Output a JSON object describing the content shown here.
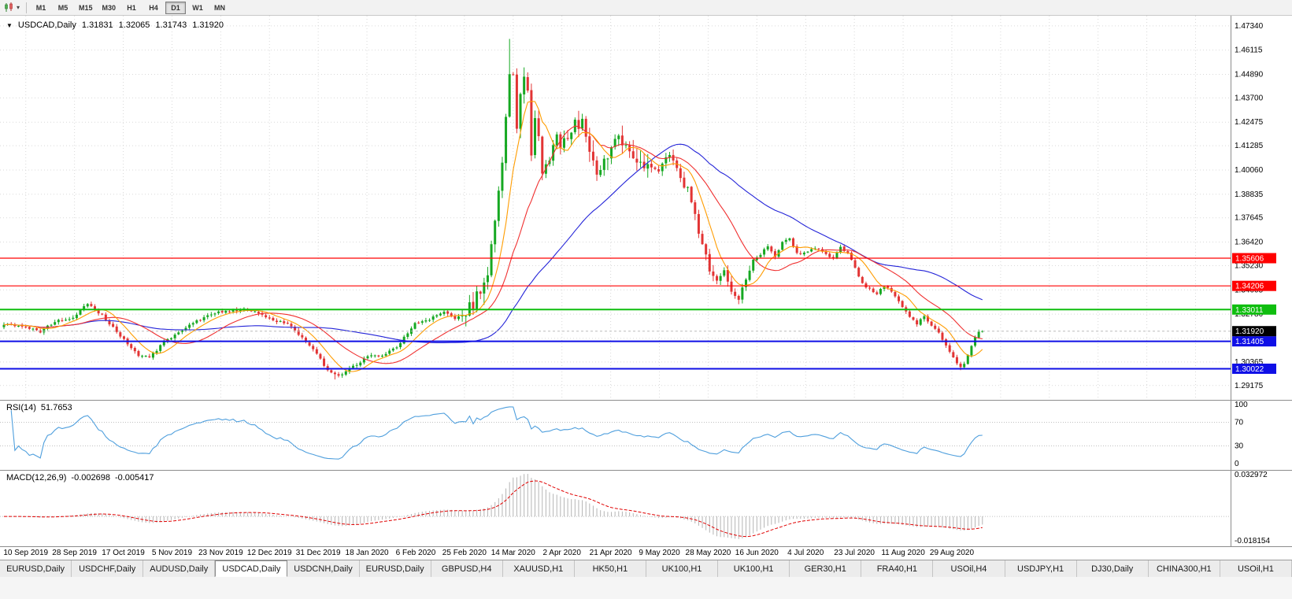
{
  "icons": {
    "collapse_arrow": "▼",
    "dropdown_caret": "▾"
  },
  "toolbar": {
    "timeframes": [
      {
        "label": "M1",
        "active": false
      },
      {
        "label": "M5",
        "active": false
      },
      {
        "label": "M15",
        "active": false
      },
      {
        "label": "M30",
        "active": false
      },
      {
        "label": "H1",
        "active": false
      },
      {
        "label": "H4",
        "active": false
      },
      {
        "label": "D1",
        "active": true
      },
      {
        "label": "W1",
        "active": false
      },
      {
        "label": "MN",
        "active": false
      }
    ]
  },
  "chart": {
    "title": {
      "symbol": "USDCAD,Daily",
      "open": "1.31831",
      "high": "1.32065",
      "low": "1.31743",
      "close": "1.31920"
    },
    "price_axis_labels": [
      "1.47340",
      "1.46115",
      "1.44890",
      "1.43700",
      "1.42475",
      "1.41285",
      "1.40060",
      "1.38835",
      "1.37645",
      "1.36420",
      "1.35230",
      "1.34005",
      "1.32780",
      "1.31555",
      "1.30365",
      "1.29175"
    ],
    "levels": [
      {
        "value": "1.35606",
        "price": 1.35606,
        "color": "#ff0000",
        "width": 1.2
      },
      {
        "value": "1.34206",
        "price": 1.34206,
        "color": "#ff0000",
        "width": 1.2
      },
      {
        "value": "1.33011",
        "price": 1.33011,
        "color": "#0fbe0f",
        "width": 2
      },
      {
        "value": "1.31405",
        "price": 1.31405,
        "color": "#0f0fe6",
        "width": 2
      },
      {
        "value": "1.30022",
        "price": 1.30022,
        "color": "#0f0fe6",
        "width": 2
      }
    ],
    "current_price": {
      "value": "1.31920",
      "price": 1.3192,
      "badge_color": "#000000"
    },
    "dates": [
      "10 Sep 2019",
      "28 Sep 2019",
      "17 Oct 2019",
      "5 Nov 2019",
      "23 Nov 2019",
      "12 Dec 2019",
      "31 Dec 2019",
      "18 Jan 2020",
      "6 Feb 2020",
      "25 Feb 2020",
      "14 Mar 2020",
      "2 Apr 2020",
      "21 Apr 2020",
      "9 May 2020",
      "28 May 2020",
      "16 Jun 2020",
      "4 Jul 2020",
      "23 Jul 2020",
      "11 Aug 2020",
      "29 Aug 2020"
    ]
  },
  "rsi": {
    "label": "RSI(14)",
    "value": "51.7653",
    "period": 14,
    "axis_labels": [
      {
        "value": 100,
        "label": "100"
      },
      {
        "value": 70,
        "label": "70"
      },
      {
        "value": 30,
        "label": "30"
      },
      {
        "value": 0,
        "label": "0"
      }
    ],
    "level_lines": [
      70,
      30
    ],
    "color": "#4f9fdd"
  },
  "macd": {
    "label": "MACD(12,26,9)",
    "main_value": "-0.002698",
    "signal_value": "-0.005417",
    "fast": 12,
    "slow": 26,
    "signal": 9,
    "axis_top": "0.032972",
    "axis_bottom": "-0.018154",
    "histogram_color": "#b4b4b4",
    "signal_color": "#e00000"
  },
  "tabs": [
    {
      "label": "EURUSD,Daily",
      "active": false
    },
    {
      "label": "USDCHF,Daily",
      "active": false
    },
    {
      "label": "AUDUSD,Daily",
      "active": false
    },
    {
      "label": "USDCAD,Daily",
      "active": true
    },
    {
      "label": "USDCNH,Daily",
      "active": false
    },
    {
      "label": "EURUSD,Daily",
      "active": false
    },
    {
      "label": "GBPUSD,H4",
      "active": false
    },
    {
      "label": "XAUUSD,H1",
      "active": false
    },
    {
      "label": "HK50,H1",
      "active": false
    },
    {
      "label": "UK100,H1",
      "active": false
    },
    {
      "label": "UK100,H1",
      "active": false
    },
    {
      "label": "GER30,H1",
      "active": false
    },
    {
      "label": "FRA40,H1",
      "active": false
    },
    {
      "label": "USOil,H4",
      "active": false
    },
    {
      "label": "USDJPY,H1",
      "active": false
    },
    {
      "label": "DJ30,Daily",
      "active": false
    },
    {
      "label": "CHINA300,H1",
      "active": false
    },
    {
      "label": "USOil,H1",
      "active": false
    }
  ],
  "chart_data": {
    "type": "candlestick",
    "symbol": "USDCAD",
    "timeframe": "Daily",
    "n_candles": 270,
    "last_close": 1.3192,
    "price_range": [
      1.2845,
      1.4785
    ],
    "close_anchors": [
      [
        0,
        1.323
      ],
      [
        6,
        1.3215
      ],
      [
        10,
        1.319
      ],
      [
        14,
        1.324
      ],
      [
        19,
        1.3262
      ],
      [
        23,
        1.3335
      ],
      [
        27,
        1.327
      ],
      [
        33,
        1.315
      ],
      [
        37,
        1.3072
      ],
      [
        40,
        1.3058
      ],
      [
        44,
        1.3135
      ],
      [
        46,
        1.3162
      ],
      [
        52,
        1.3232
      ],
      [
        56,
        1.3272
      ],
      [
        60,
        1.3292
      ],
      [
        66,
        1.3302
      ],
      [
        70,
        1.3282
      ],
      [
        73,
        1.3252
      ],
      [
        78,
        1.3232
      ],
      [
        82,
        1.316
      ],
      [
        86,
        1.3082
      ],
      [
        89,
        1.2992
      ],
      [
        92,
        1.2962
      ],
      [
        96,
        1.3012
      ],
      [
        100,
        1.3062
      ],
      [
        104,
        1.3072
      ],
      [
        108,
        1.3112
      ],
      [
        113,
        1.3232
      ],
      [
        117,
        1.3252
      ],
      [
        121,
        1.3292
      ],
      [
        124,
        1.3258
      ],
      [
        127,
        1.3282
      ],
      [
        129,
        1.3332
      ],
      [
        131,
        1.3402
      ],
      [
        133,
        1.3492
      ],
      [
        135,
        1.3752
      ],
      [
        137,
        1.4052
      ],
      [
        139,
        1.4502
      ],
      [
        140,
        1.4462
      ],
      [
        141,
        1.4202
      ],
      [
        142,
        1.4362
      ],
      [
        143,
        1.4482
      ],
      [
        144,
        1.4382
      ],
      [
        145,
        1.4102
      ],
      [
        146,
        1.4262
      ],
      [
        147,
        1.4182
      ],
      [
        148,
        1.3982
      ],
      [
        150,
        1.4082
      ],
      [
        152,
        1.4182
      ],
      [
        153,
        1.4142
      ],
      [
        155,
        1.4192
      ],
      [
        157,
        1.4232
      ],
      [
        159,
        1.4252
      ],
      [
        161,
        1.4082
      ],
      [
        163,
        1.3982
      ],
      [
        165,
        1.4062
      ],
      [
        167,
        1.4092
      ],
      [
        169,
        1.4182
      ],
      [
        172,
        1.4122
      ],
      [
        175,
        1.4032
      ],
      [
        178,
        1.3992
      ],
      [
        180,
        1.4012
      ],
      [
        183,
        1.4082
      ],
      [
        186,
        1.3962
      ],
      [
        188,
        1.3902
      ],
      [
        190,
        1.3782
      ],
      [
        192,
        1.3622
      ],
      [
        194,
        1.3502
      ],
      [
        196,
        1.3432
      ],
      [
        198,
        1.3492
      ],
      [
        200,
        1.3392
      ],
      [
        202,
        1.3362
      ],
      [
        204,
        1.3452
      ],
      [
        206,
        1.3552
      ],
      [
        208,
        1.3582
      ],
      [
        210,
        1.3622
      ],
      [
        212,
        1.3562
      ],
      [
        214,
        1.3642
      ],
      [
        216,
        1.3662
      ],
      [
        218,
        1.3582
      ],
      [
        220,
        1.3592
      ],
      [
        223,
        1.3612
      ],
      [
        226,
        1.3582
      ],
      [
        228,
        1.3562
      ],
      [
        230,
        1.3612
      ],
      [
        232,
        1.3582
      ],
      [
        234,
        1.3512
      ],
      [
        236,
        1.3432
      ],
      [
        238,
        1.3402
      ],
      [
        240,
        1.3382
      ],
      [
        242,
        1.3422
      ],
      [
        244,
        1.3392
      ],
      [
        246,
        1.3342
      ],
      [
        247,
        1.3312
      ],
      [
        249,
        1.3262
      ],
      [
        251,
        1.3232
      ],
      [
        253,
        1.3262
      ],
      [
        255,
        1.3222
      ],
      [
        257,
        1.3182
      ],
      [
        259,
        1.3122
      ],
      [
        261,
        1.3062
      ],
      [
        263,
        1.3005
      ],
      [
        264,
        1.3022
      ],
      [
        265,
        1.3072
      ],
      [
        266,
        1.3112
      ],
      [
        267,
        1.3162
      ],
      [
        268,
        1.3185
      ],
      [
        269,
        1.3192
      ]
    ],
    "forced": {
      "high": [
        [
          139,
          1.4668
        ]
      ],
      "low": [
        [
          91,
          1.2948
        ],
        [
          263,
          1.2995
        ]
      ]
    },
    "colors": {
      "up": "#16a822",
      "down": "#e23434"
    },
    "moving_averages": [
      {
        "type": "sma",
        "period": 50,
        "color": "#2424d8"
      },
      {
        "type": "sma",
        "period": 20,
        "color": "#f03030"
      },
      {
        "type": "sma",
        "period": 8,
        "color": "#ff9c00"
      }
    ],
    "horizontal_levels": [
      1.35606,
      1.34206,
      1.33011,
      1.31405,
      1.30022
    ]
  }
}
